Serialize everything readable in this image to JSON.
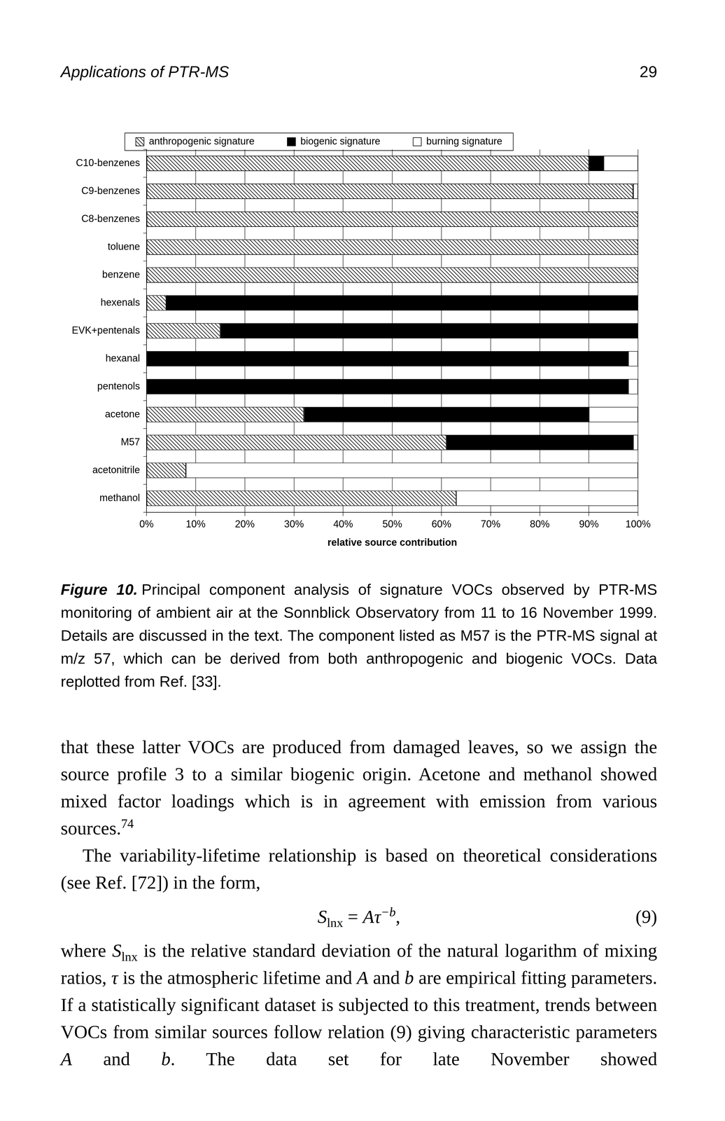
{
  "header": {
    "title": "Applications of PTR-MS",
    "page": "29"
  },
  "chart_data": {
    "type": "bar",
    "orientation": "horizontal",
    "stacked": true,
    "grid": true,
    "legend": "top",
    "x_label": "relative source contribution",
    "categories": [
      "C10-benzenes",
      "C9-benzenes",
      "C8-benzenes",
      "toluene",
      "benzene",
      "hexenals",
      "EVK+pentenals",
      "hexanal",
      "pentenols",
      "acetone",
      "M57",
      "acetonitrile",
      "methanol"
    ],
    "series": [
      {
        "name": "anthropogenic signature",
        "color": "#000000",
        "line_style": "hatched",
        "values": [
          90,
          99,
          100,
          100,
          100,
          4,
          15,
          0,
          0,
          32,
          61,
          8,
          63
        ]
      },
      {
        "name": "biogenic signature",
        "color": "#000000",
        "values": [
          3,
          0,
          0,
          0,
          0,
          96,
          85,
          98,
          98,
          58,
          38,
          0,
          0
        ]
      },
      {
        "name": "burning signature",
        "color": "#ffffff",
        "values": [
          7,
          1,
          0,
          0,
          0,
          0,
          0,
          2,
          2,
          10,
          1,
          92,
          37
        ]
      }
    ],
    "xlim": [
      0,
      100
    ],
    "xticks": [
      {
        "value": 0,
        "label": "0%"
      },
      {
        "value": 10,
        "label": "10%"
      },
      {
        "value": 20,
        "label": "20%"
      },
      {
        "value": 30,
        "label": "30%"
      },
      {
        "value": 40,
        "label": "40%"
      },
      {
        "value": 50,
        "label": "50%"
      },
      {
        "value": 60,
        "label": "60%"
      },
      {
        "value": 70,
        "label": "70%"
      },
      {
        "value": 80,
        "label": "80%"
      },
      {
        "value": 90,
        "label": "90%"
      },
      {
        "value": 100,
        "label": "100%"
      }
    ]
  },
  "caption": {
    "label": "Figure 10.",
    "text": "Principal component analysis of signature VOCs observed by PTR-MS monitoring of ambient air at the Sonnblick Observatory from 11 to 16 November 1999. Details are discussed in the text. The component listed as M57 is the PTR-MS signal at m/z 57, which can be derived from both anthropogenic and biogenic VOCs. Data replotted from Ref. [33]."
  },
  "body": [
    {
      "indent": false,
      "segments": [
        {
          "text": "that these latter VOCs are produced from damaged leaves, so we assign the source profile 3 to a similar biogenic origin. Acetone and methanol showed mixed factor loadings which is in agreement with emission from various sources."
        },
        {
          "text": "74",
          "sup": true
        }
      ]
    },
    {
      "indent": true,
      "segments": [
        {
          "text": "The variability-lifetime relationship is based on theoretical considerations (see Ref. [72]) in the form,"
        }
      ]
    },
    {
      "equation": [
        {
          "text": "S",
          "italic": true
        },
        {
          "text": "lnx",
          "sub": true
        },
        {
          "text": " = "
        },
        {
          "text": "Aτ",
          "italic": true
        },
        {
          "text": "−b",
          "sup": true,
          "italic": true
        },
        {
          "text": ","
        }
      ],
      "number": "(9)"
    },
    {
      "indent": false,
      "segments": [
        {
          "text": "where "
        },
        {
          "text": "S",
          "italic": true
        },
        {
          "text": "lnx",
          "sub": true
        },
        {
          "text": " is the relative standard deviation of the natural logarithm of mixing ratios, "
        },
        {
          "text": "τ",
          "italic": true
        },
        {
          "text": " is the atmospheric lifetime and "
        },
        {
          "text": "A",
          "italic": true
        },
        {
          "text": " and "
        },
        {
          "text": "b",
          "italic": true
        },
        {
          "text": " are empirical fitting parameters. If a statistically significant dataset is subjected to this treatment, trends between VOCs from similar sources follow relation (9) giving characteristic parameters "
        },
        {
          "text": "A",
          "italic": true
        },
        {
          "text": " and "
        },
        {
          "text": "b",
          "italic": true
        },
        {
          "text": ". The data set for late November showed"
        }
      ]
    }
  ]
}
